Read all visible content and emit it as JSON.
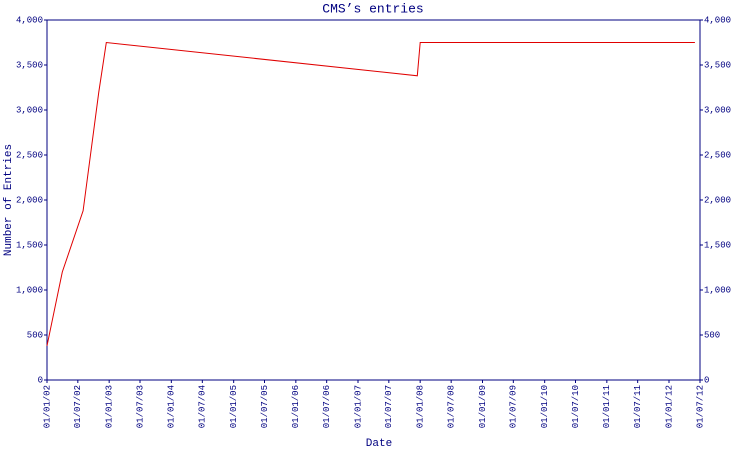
{
  "chart_data": {
    "type": "line",
    "title": "CMS’s entries",
    "x_label": "Date",
    "y_label": "Number of Entries",
    "x": [
      "01/01/02",
      "01/04/02",
      "01/08/02",
      "01/11/02",
      "15/12/02",
      "15/12/07",
      "01/01/08",
      "01/06/12"
    ],
    "series": [
      {
        "name": "entries",
        "color": "#e00000",
        "values": [
          380,
          1200,
          1880,
          3200,
          3750,
          3380,
          3750,
          3750
        ]
      }
    ],
    "xlim": [
      "01/01/02",
      "01/07/12"
    ],
    "xticks": [
      "01/01/02",
      "01/07/02",
      "01/01/03",
      "01/07/03",
      "01/01/04",
      "01/07/04",
      "01/01/05",
      "01/07/05",
      "01/01/06",
      "01/07/06",
      "01/01/07",
      "01/07/07",
      "01/01/08",
      "01/07/08",
      "01/01/09",
      "01/07/09",
      "01/01/10",
      "01/07/10",
      "01/01/11",
      "01/07/11",
      "01/01/12",
      "01/07/12"
    ],
    "ylim": [
      0,
      4000
    ],
    "yticks": [
      0,
      500,
      {
        "value": 1000,
        "label": "1,000"
      },
      {
        "value": 1500,
        "label": "1,500"
      },
      {
        "value": 2000,
        "label": "2,000"
      },
      {
        "value": 2500,
        "label": "2,500"
      },
      {
        "value": 3000,
        "label": "3,000"
      },
      {
        "value": 3500,
        "label": "3,500"
      },
      {
        "value": 4000,
        "label": "4,000"
      }
    ],
    "right_axis": true,
    "grid": false
  }
}
